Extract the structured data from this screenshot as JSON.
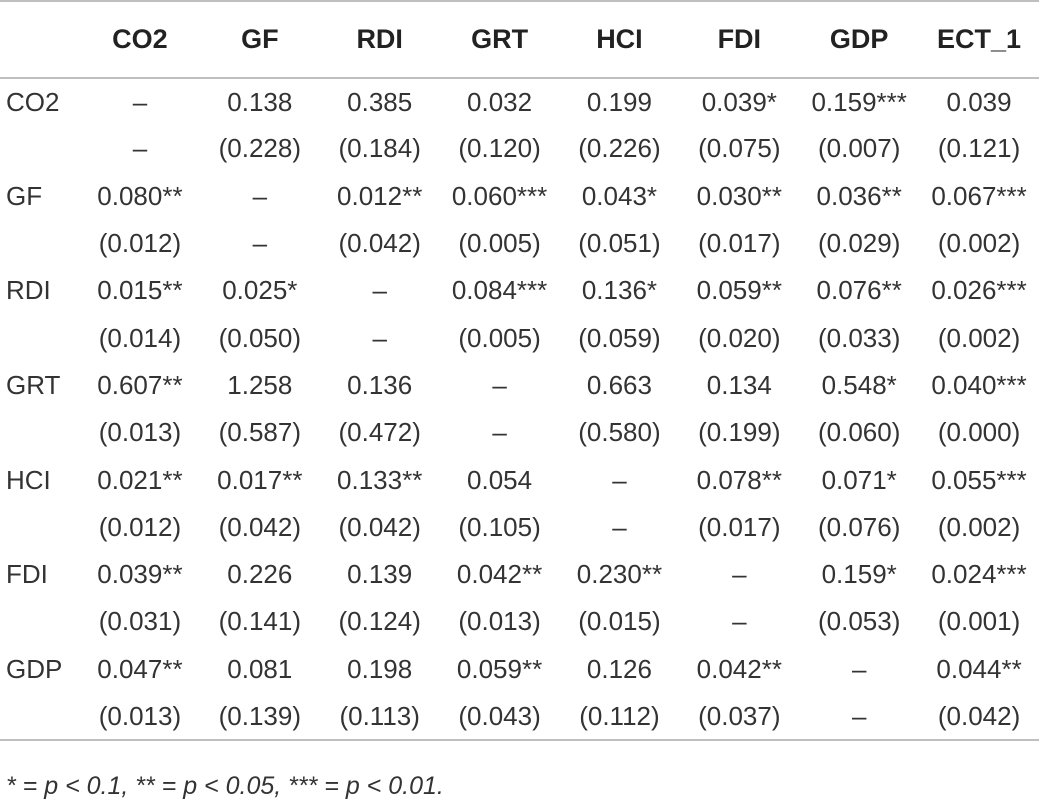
{
  "table": {
    "headers": [
      "",
      "CO2",
      "GF",
      "RDI",
      "GRT",
      "HCI",
      "FDI",
      "GDP",
      "ECT_1"
    ],
    "rows": [
      {
        "label": "CO2",
        "cells": [
          "–",
          "0.138",
          "0.385",
          "0.032",
          "0.199",
          "0.039*",
          "0.159***",
          "0.039"
        ]
      },
      {
        "label": "",
        "cells": [
          "–",
          "(0.228)",
          "(0.184)",
          "(0.120)",
          "(0.226)",
          "(0.075)",
          "(0.007)",
          "(0.121)"
        ]
      },
      {
        "label": "GF",
        "cells": [
          "0.080**",
          "–",
          "0.012**",
          "0.060***",
          "0.043*",
          "0.030**",
          "0.036**",
          "0.067***"
        ]
      },
      {
        "label": "",
        "cells": [
          "(0.012)",
          "–",
          "(0.042)",
          "(0.005)",
          "(0.051)",
          "(0.017)",
          "(0.029)",
          "(0.002)"
        ]
      },
      {
        "label": "RDI",
        "cells": [
          "0.015**",
          "0.025*",
          "–",
          "0.084***",
          "0.136*",
          "0.059**",
          "0.076**",
          "0.026***"
        ]
      },
      {
        "label": "",
        "cells": [
          "(0.014)",
          "(0.050)",
          "–",
          "(0.005)",
          "(0.059)",
          "(0.020)",
          "(0.033)",
          "(0.002)"
        ]
      },
      {
        "label": "GRT",
        "cells": [
          "0.607**",
          "1.258",
          "0.136",
          "–",
          "0.663",
          "0.134",
          "0.548*",
          "0.040***"
        ]
      },
      {
        "label": "",
        "cells": [
          "(0.013)",
          "(0.587)",
          "(0.472)",
          "–",
          "(0.580)",
          "(0.199)",
          "(0.060)",
          "(0.000)"
        ]
      },
      {
        "label": "HCI",
        "cells": [
          "0.021**",
          "0.017**",
          "0.133**",
          "0.054",
          "–",
          "0.078**",
          "0.071*",
          "0.055***"
        ]
      },
      {
        "label": "",
        "cells": [
          "(0.012)",
          "(0.042)",
          "(0.042)",
          "(0.105)",
          "–",
          "(0.017)",
          "(0.076)",
          "(0.002)"
        ]
      },
      {
        "label": "FDI",
        "cells": [
          "0.039**",
          "0.226",
          "0.139",
          "0.042**",
          "0.230**",
          "–",
          "0.159*",
          "0.024***"
        ]
      },
      {
        "label": "",
        "cells": [
          "(0.031)",
          "(0.141)",
          "(0.124)",
          "(0.013)",
          "(0.015)",
          "–",
          "(0.053)",
          "(0.001)"
        ]
      },
      {
        "label": "GDP",
        "cells": [
          "0.047**",
          "0.081",
          "0.198",
          "0.059**",
          "0.126",
          "0.042**",
          "–",
          "0.044**"
        ]
      },
      {
        "label": "",
        "cells": [
          "(0.013)",
          "(0.139)",
          "(0.113)",
          "(0.043)",
          "(0.112)",
          "(0.037)",
          "–",
          "(0.042)"
        ]
      }
    ]
  },
  "footnote": "* = p < 0.1,  ** = p < 0.05,  *** = p < 0.01."
}
